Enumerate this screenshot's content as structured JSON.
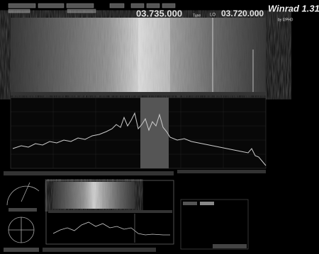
{
  "header": {
    "tune_label": "Tune",
    "tune_freq": "03.735.000",
    "lo_label": "LO",
    "lo_freq": "03.720.000",
    "app_title": "Winrad 1.31",
    "author": "by I2PHD"
  }
}
